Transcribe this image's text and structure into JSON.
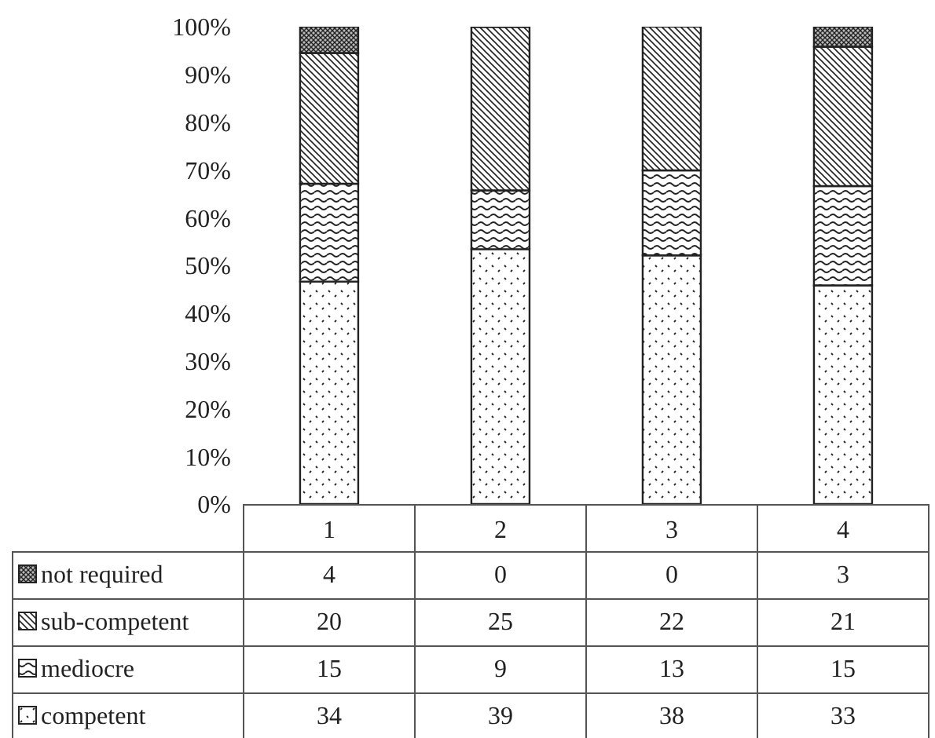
{
  "chart_data": {
    "type": "bar",
    "stacked": true,
    "categories": [
      "1",
      "2",
      "3",
      "4"
    ],
    "ylim": [
      0,
      100
    ],
    "yticks": [
      {
        "value": 0,
        "label": "0%"
      },
      {
        "value": 10,
        "label": "10%"
      },
      {
        "value": 20,
        "label": "20%"
      },
      {
        "value": 30,
        "label": "30%"
      },
      {
        "value": 40,
        "label": "40%"
      },
      {
        "value": 50,
        "label": "50%"
      },
      {
        "value": 60,
        "label": "60%"
      },
      {
        "value": 70,
        "label": "70%"
      },
      {
        "value": 80,
        "label": "80%"
      },
      {
        "value": 90,
        "label": "90%"
      },
      {
        "value": 100,
        "label": "100%"
      }
    ],
    "legend": "bottom",
    "series": [
      {
        "name": "competent",
        "color": "#222222",
        "values": [
          46.6,
          53.4,
          52.1,
          45.8
        ]
      },
      {
        "name": "mediocre",
        "color": "#222222",
        "values": [
          20.5,
          12.3,
          17.8,
          20.8
        ]
      },
      {
        "name": "sub-competent",
        "color": "#222222",
        "values": [
          27.4,
          34.2,
          30.1,
          29.2
        ]
      },
      {
        "name": "not required",
        "color": "#222222",
        "values": [
          5.5,
          0,
          0,
          4.2
        ]
      }
    ],
    "annotations": [
      "4",
      "0",
      "0",
      "3",
      "20",
      "25",
      "22",
      "21",
      "15",
      "9",
      "13",
      "15",
      "34",
      "39",
      "38",
      "33"
    ]
  }
}
